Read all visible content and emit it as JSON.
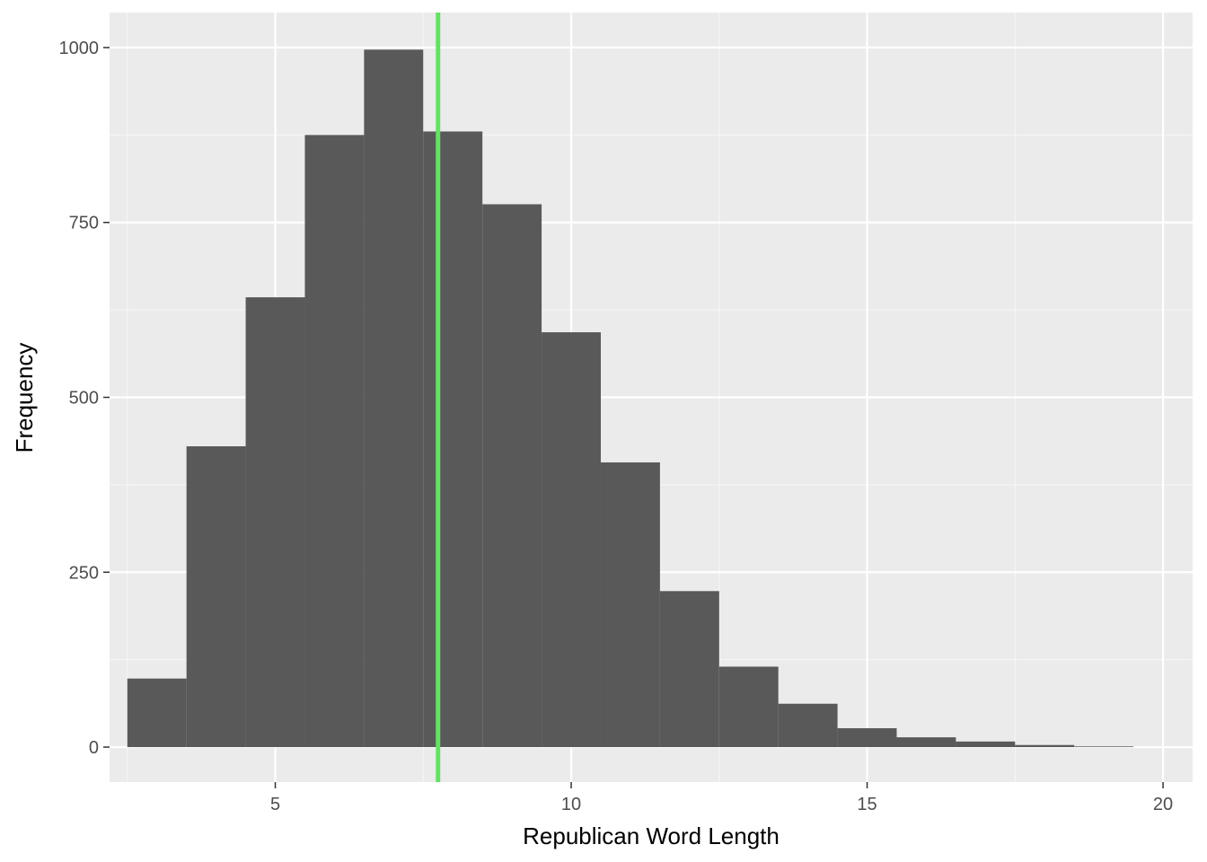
{
  "chart_data": {
    "type": "bar",
    "subtype": "histogram",
    "xlabel": "Republican Word Length",
    "ylabel": "Frequency",
    "xlim": [
      2.2,
      20.5
    ],
    "ylim": [
      -50,
      1050
    ],
    "x_ticks": [
      5,
      10,
      15,
      20
    ],
    "x_minor_ticks": [
      2.5,
      7.5,
      12.5,
      17.5
    ],
    "y_ticks": [
      0,
      250,
      500,
      750,
      1000
    ],
    "y_minor_ticks": [
      125,
      375,
      625,
      875
    ],
    "bin_width": 1,
    "bins": [
      {
        "x0": 2.5,
        "x1": 3.5,
        "count": 98
      },
      {
        "x0": 3.5,
        "x1": 4.5,
        "count": 430
      },
      {
        "x0": 4.5,
        "x1": 5.5,
        "count": 643
      },
      {
        "x0": 5.5,
        "x1": 6.5,
        "count": 875
      },
      {
        "x0": 6.5,
        "x1": 7.5,
        "count": 997
      },
      {
        "x0": 7.5,
        "x1": 8.5,
        "count": 880
      },
      {
        "x0": 8.5,
        "x1": 9.5,
        "count": 776
      },
      {
        "x0": 9.5,
        "x1": 10.5,
        "count": 593
      },
      {
        "x0": 10.5,
        "x1": 11.5,
        "count": 407
      },
      {
        "x0": 11.5,
        "x1": 12.5,
        "count": 223
      },
      {
        "x0": 12.5,
        "x1": 13.5,
        "count": 115
      },
      {
        "x0": 13.5,
        "x1": 14.5,
        "count": 62
      },
      {
        "x0": 14.5,
        "x1": 15.5,
        "count": 27
      },
      {
        "x0": 15.5,
        "x1": 16.5,
        "count": 14
      },
      {
        "x0": 16.5,
        "x1": 17.5,
        "count": 8
      },
      {
        "x0": 17.5,
        "x1": 18.5,
        "count": 3
      },
      {
        "x0": 18.5,
        "x1": 19.5,
        "count": 1
      }
    ],
    "vline": {
      "x": 7.75
    },
    "grid": true,
    "colors": {
      "panel_background": "#ebebeb",
      "grid_major": "#ffffff",
      "grid_minor": "#f5f5f5",
      "bar_fill": "#595959",
      "vline": "#66e066"
    }
  }
}
